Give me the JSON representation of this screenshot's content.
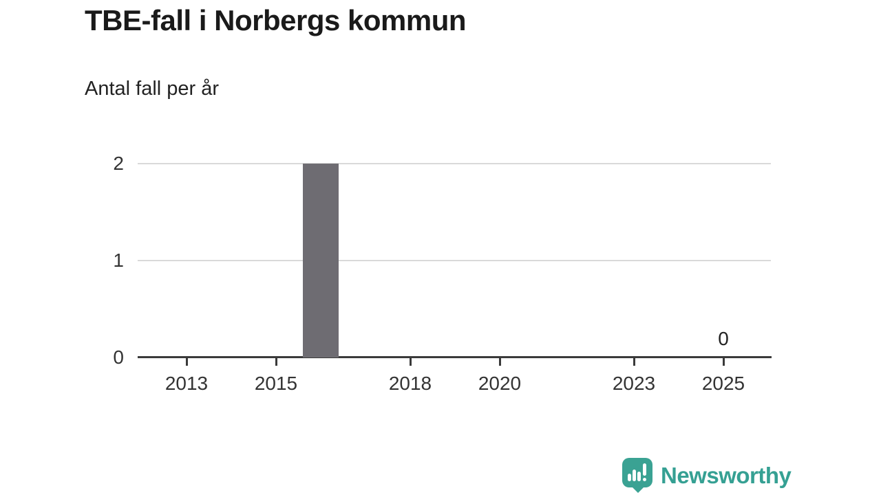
{
  "header": {
    "title": "TBE-fall i Norbergs kommun",
    "subtitle": "Antal fall per år"
  },
  "chart_data": {
    "type": "bar",
    "title": "TBE-fall i Norbergs kommun",
    "subtitle": "Antal fall per år",
    "points": [
      {
        "year": 2016,
        "value": 2
      },
      {
        "year": 2025,
        "value": 0,
        "label": "0"
      }
    ],
    "xticks": [
      2013,
      2015,
      2018,
      2020,
      2023,
      2025
    ],
    "yticks": [
      0,
      1,
      2
    ],
    "ylim": [
      0,
      2
    ],
    "grid": "horizontal",
    "legend": "none",
    "bar_color": "#6e6c72"
  },
  "colors": {
    "background": "#ffffff",
    "title_text": "#1a1a1a",
    "axis_text": "#333333",
    "axis_line": "#3a3a3a",
    "gridline": "#d9d9d9",
    "bar": "#6e6c72",
    "brand_teal": "#3aa293"
  },
  "footer": {
    "brand": "Newsworthy"
  }
}
